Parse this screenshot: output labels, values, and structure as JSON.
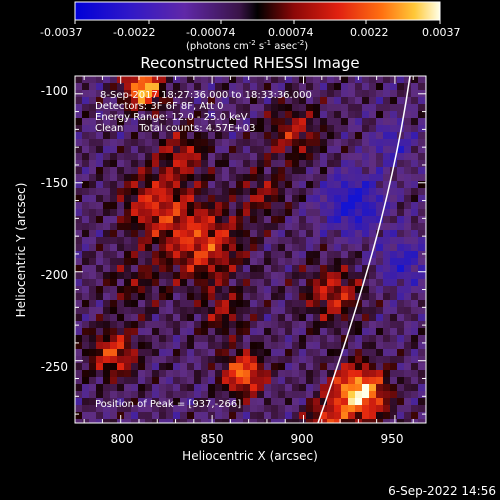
{
  "colorbar": {
    "ticks": [
      "-0.0037",
      "-0.0022",
      "-0.00074",
      "0.00074",
      "0.0022",
      "0.0037"
    ],
    "tick_values": [
      -0.0037,
      -0.0022,
      -0.00074,
      0.00074,
      0.0022,
      0.0037
    ],
    "units_main": "(photons cm",
    "units_sup1": "-2",
    "units_mid": " s",
    "units_sup2": "-1",
    "units_end": " asec",
    "units_sup3": "-2",
    "units_close": ")"
  },
  "plot": {
    "title": "Reconstructed RHESSI Image",
    "xlabel": "Heliocentric X (arcsec)",
    "ylabel": "Heliocentric Y (arcsec)",
    "x_ticks": [
      "800",
      "850",
      "900",
      "950"
    ],
    "x_tick_values": [
      800,
      850,
      900,
      950
    ],
    "y_ticks": [
      "-100",
      "-150",
      "-200",
      "-250"
    ],
    "y_tick_values": [
      -100,
      -150,
      -200,
      -250
    ],
    "xlim": [
      775,
      967
    ],
    "ylim": [
      -285,
      -90
    ]
  },
  "annotation": {
    "time_range": "8-Sep-2017 18:27:36.000 to 18:33:36.000",
    "detectors": "Detectors: 3F 6F 8F, Att 0",
    "energy": "Energy Range: 12.0 - 25.0 keV",
    "clean": "Clean     Total counts: 4.57E+03",
    "peak": "Position of Peak = [937,-266]"
  },
  "footer": {
    "date": "6-Sep-2022 14:56"
  },
  "colors": {
    "limb": "#ffffff",
    "scale": [
      "#0000e0",
      "#5a30b0",
      "#7a3c8c",
      "#000000",
      "#a01010",
      "#e02010",
      "#ff8010",
      "#ffd040",
      "#fffff0"
    ]
  }
}
